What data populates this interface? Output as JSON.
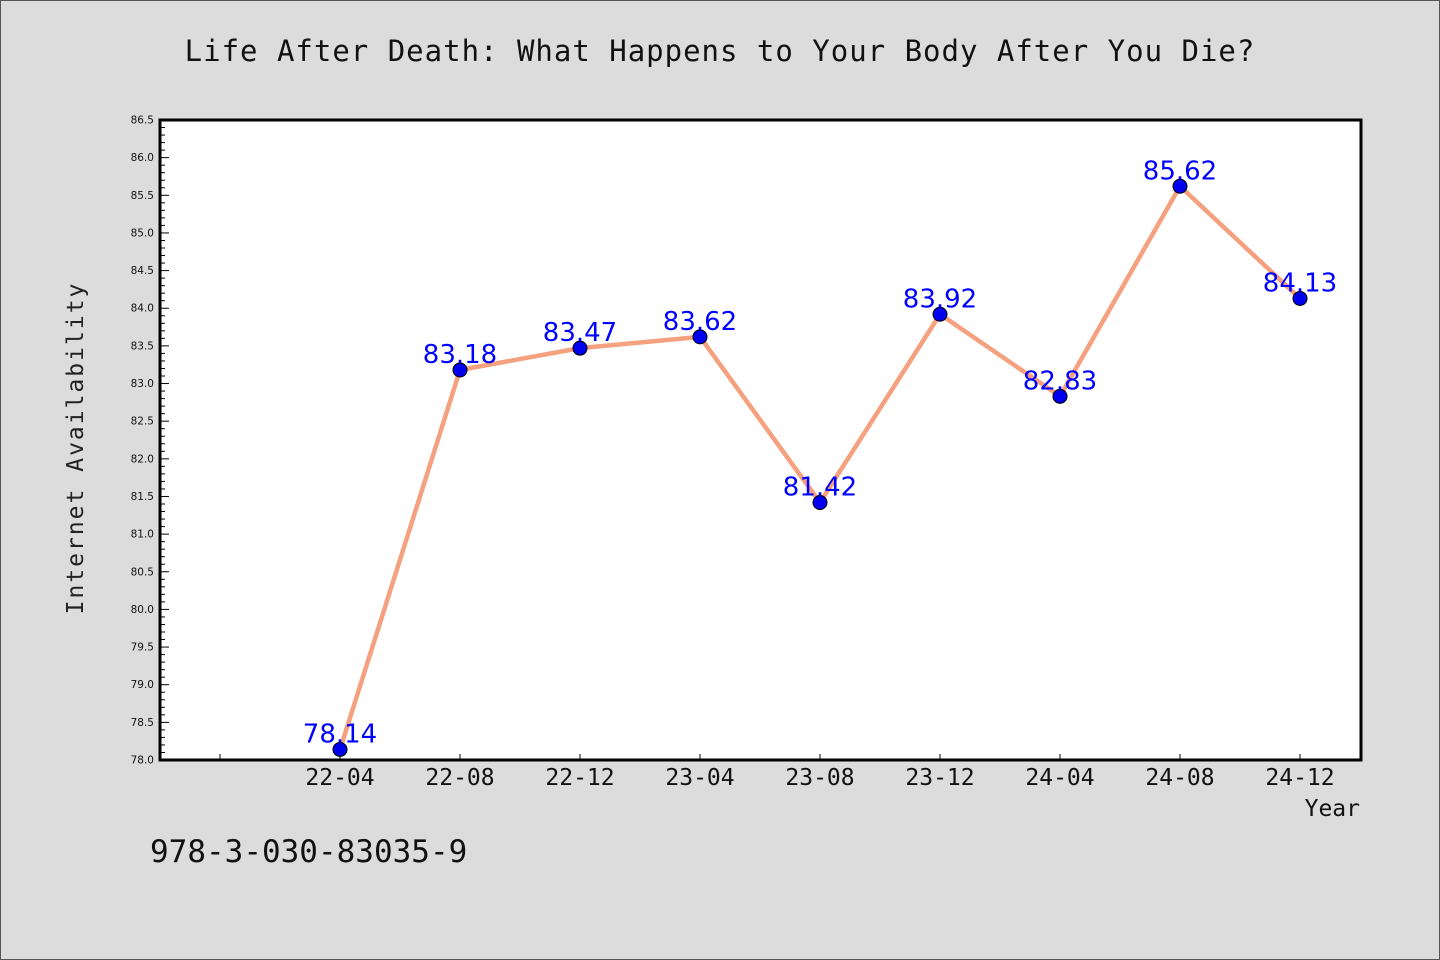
{
  "chart_data": {
    "type": "line",
    "title": "Life After Death: What Happens to Your Body After You Die?",
    "xlabel": "Year",
    "ylabel": "Internet Availability",
    "categories": [
      "22-04",
      "22-08",
      "22-12",
      "23-04",
      "23-08",
      "23-12",
      "24-04",
      "24-08",
      "24-12"
    ],
    "series": [
      {
        "values": [
          78.14,
          83.18,
          83.47,
          83.62,
          81.42,
          83.92,
          82.83,
          85.62,
          84.13
        ],
        "data_labels": [
          "78.14",
          "83.18",
          "83.47",
          "83.62",
          "81.42",
          "83.92",
          "82.83",
          "85.62",
          "84.13"
        ],
        "line_color": "#f5a07e",
        "marker_color": "#0000ee"
      }
    ],
    "ylim": [
      78.0,
      86.5
    ],
    "ytick_step": 0.5,
    "grid": false,
    "label_color": "#0000ff"
  },
  "footnote": "978-3-030-83035-9"
}
